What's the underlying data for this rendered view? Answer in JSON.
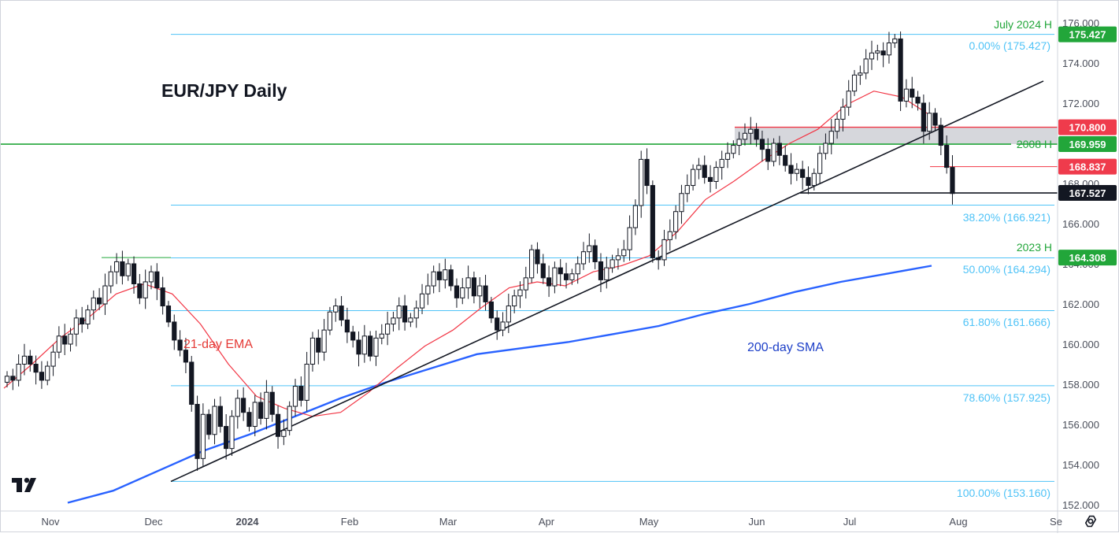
{
  "title": "EUR/JPY Daily",
  "annotations": {
    "ema_label": "21-day EMA",
    "sma_label": "200-day SMA"
  },
  "levels": {
    "july_high_label": "July 2024 H",
    "high_2008_label": "2008 H",
    "high_2023_label": "2023 H"
  },
  "price_badges": {
    "july_high": "175.427",
    "resistance": "170.800",
    "high_2008": "169.959",
    "support_upper": "168.837",
    "current": "167.527",
    "high_2023": "164.308"
  },
  "fib_labels": {
    "f0": "0.00% (175.427)",
    "f382": "38.20% (166.921)",
    "f50": "50.00% (164.294)",
    "f618": "61.80% (161.666)",
    "f786": "78.60% (157.925)",
    "f100": "100.00% (153.160)"
  },
  "colors": {
    "up_candle": "#ffffff",
    "down_candle": "#131722",
    "ema": "#f23645",
    "sma": "#2962ff",
    "fib": "#4fc3f7",
    "green_level": "#22a63a",
    "red_level": "#f23645",
    "trendline": "#131722",
    "zone": "#c8cad0"
  },
  "chart_data": {
    "type": "candlestick",
    "symbol": "EUR/JPY",
    "timeframe": "Daily",
    "ylim": [
      152,
      176
    ],
    "y_ticks": [
      "152.000",
      "154.000",
      "156.000",
      "158.000",
      "160.000",
      "162.000",
      "164.000",
      "166.000",
      "168.000",
      "170.000",
      "172.000",
      "174.000",
      "176.000"
    ],
    "x_ticks": [
      "Nov",
      "Dec",
      "2024",
      "Feb",
      "Mar",
      "Apr",
      "May",
      "Jun",
      "Jul",
      "Aug",
      "Se"
    ],
    "closes": [
      158.4,
      158.2,
      159.0,
      159.4,
      159.0,
      158.6,
      158.2,
      158.9,
      159.6,
      160.4,
      160.0,
      160.5,
      161.3,
      161.0,
      161.7,
      162.3,
      162.0,
      162.9,
      163.6,
      164.1,
      163.4,
      164.0,
      163.0,
      162.3,
      163.1,
      163.6,
      162.8,
      161.9,
      161.1,
      160.2,
      159.7,
      159.1,
      157.0,
      154.3,
      156.5,
      155.5,
      156.9,
      155.9,
      154.8,
      156.4,
      157.3,
      156.6,
      155.9,
      157.1,
      156.3,
      157.6,
      156.5,
      155.4,
      155.7,
      156.9,
      157.9,
      157.2,
      159.0,
      160.3,
      159.6,
      160.7,
      161.6,
      161.9,
      161.2,
      160.6,
      160.2,
      159.5,
      160.4,
      159.4,
      160.3,
      160.5,
      161.0,
      161.3,
      161.9,
      161.1,
      161.3,
      161.8,
      162.5,
      162.9,
      163.6,
      163.2,
      163.7,
      162.9,
      162.3,
      162.8,
      163.3,
      162.4,
      162.9,
      162.1,
      161.3,
      160.7,
      161.1,
      161.9,
      162.4,
      162.7,
      163.3,
      164.7,
      164.0,
      163.3,
      162.9,
      163.8,
      163.5,
      163.2,
      163.5,
      164.0,
      164.6,
      164.9,
      164.1,
      163.2,
      163.8,
      164.2,
      164.4,
      164.7,
      165.8,
      166.9,
      169.2,
      167.9,
      164.3,
      164.2,
      165.2,
      165.6,
      166.6,
      167.5,
      167.9,
      168.7,
      168.9,
      168.3,
      168.1,
      168.8,
      169.2,
      169.5,
      169.9,
      170.2,
      170.5,
      170.7,
      170.2,
      169.7,
      169.1,
      170.0,
      169.4,
      168.9,
      168.5,
      168.7,
      168.3,
      167.9,
      168.5,
      169.5,
      170.0,
      170.6,
      171.2,
      171.8,
      172.6,
      173.4,
      173.5,
      174.2,
      174.5,
      174.6,
      174.4,
      175.0,
      175.2,
      172.1,
      172.7,
      172.3,
      172.0,
      170.6,
      171.5,
      170.9,
      169.9,
      168.8,
      167.5
    ],
    "ema_21": [
      157.8,
      159.0,
      160.3,
      161.3,
      162.5,
      163.0,
      162.5,
      161.0,
      159.0,
      157.4,
      156.8,
      156.4,
      156.6,
      157.6,
      158.8,
      159.9,
      160.7,
      161.8,
      162.8,
      163.1,
      162.9,
      163.6,
      163.9,
      164.4,
      165.6,
      167.2,
      168.1,
      169.1,
      170.0,
      170.7,
      171.9,
      172.6,
      172.3,
      171.4
    ],
    "sma_200": [
      152.1,
      152.7,
      153.7,
      154.7,
      155.5,
      156.4,
      157.3,
      158.1,
      158.8,
      159.5,
      159.8,
      160.1,
      160.5,
      160.9,
      161.5,
      162.0,
      162.6,
      163.1,
      163.5,
      163.9
    ],
    "fibonacci": [
      {
        "level": "0.00%",
        "price": 175.427
      },
      {
        "level": "38.20%",
        "price": 166.921
      },
      {
        "level": "50.00%",
        "price": 164.294
      },
      {
        "level": "61.80%",
        "price": 161.666
      },
      {
        "level": "78.60%",
        "price": 157.925
      },
      {
        "level": "100.00%",
        "price": 153.16
      }
    ],
    "horizontal_levels": [
      {
        "label": "July 2024 H",
        "price": 175.427
      },
      {
        "label": "2008 H",
        "price": 169.959
      },
      {
        "label": "2023 H",
        "price": 164.308
      },
      {
        "label": "",
        "price": 170.8
      },
      {
        "label": "",
        "price": 168.837
      },
      {
        "label": "",
        "price": 167.527
      }
    ],
    "trendline": {
      "start_price": 153.16,
      "end_price": 173.1
    }
  }
}
